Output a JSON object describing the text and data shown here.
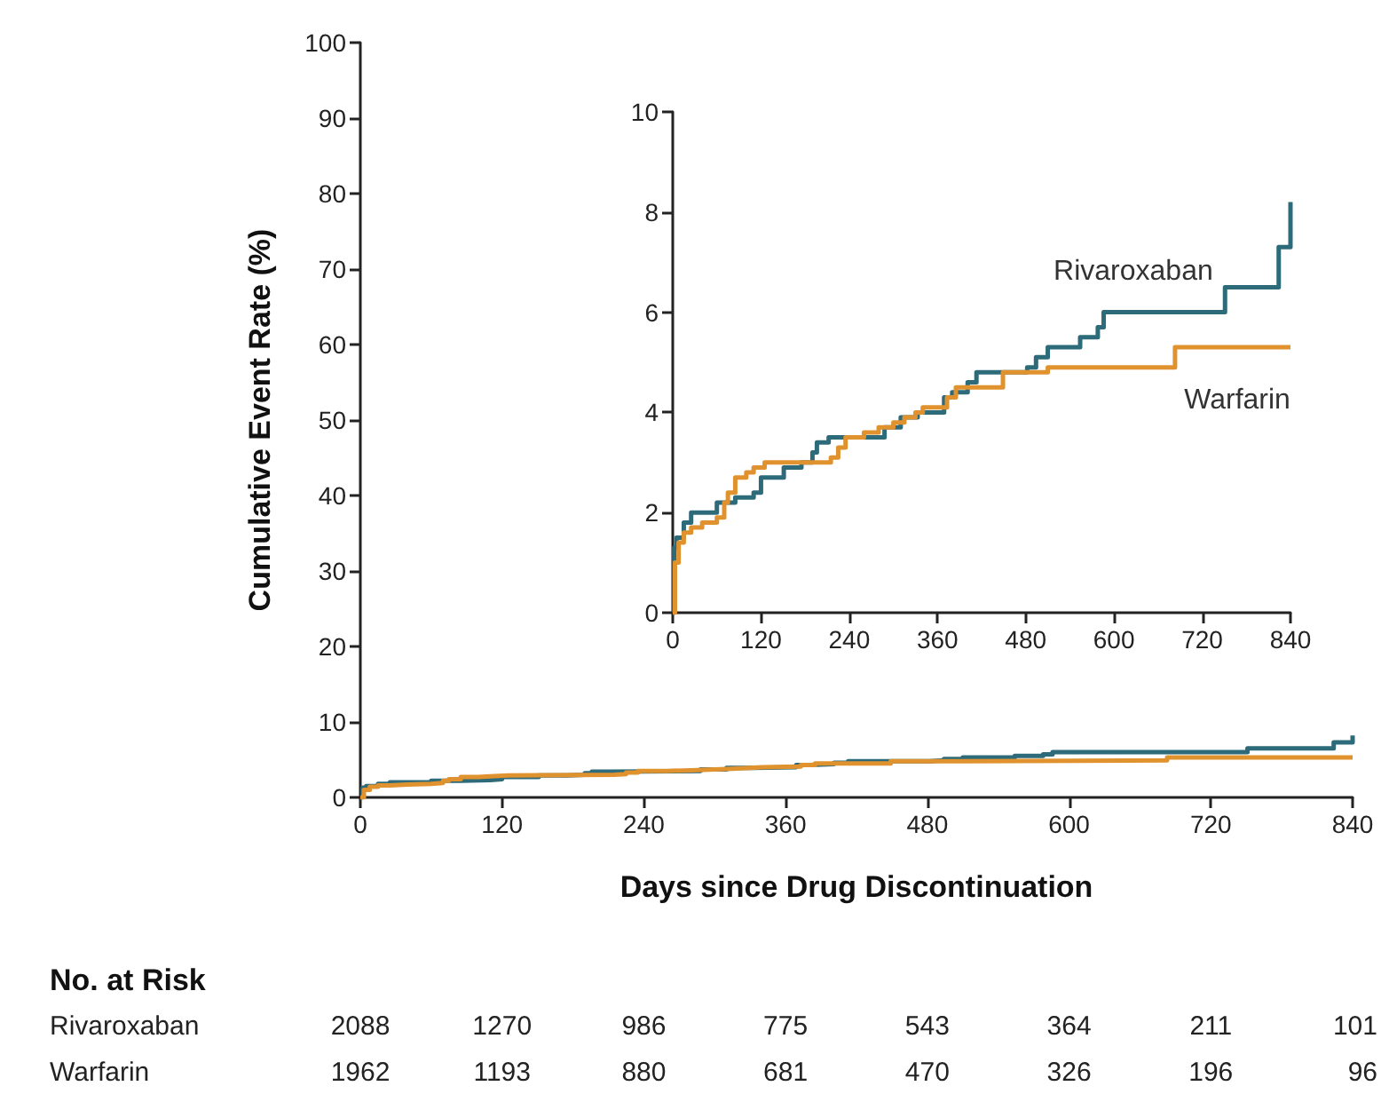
{
  "chart_data": [
    {
      "type": "step",
      "xlabel": "Days since Drug Discontinuation",
      "ylabel": "Cumulative Event Rate (%)",
      "xlim": [
        0,
        840
      ],
      "xticks": [
        0,
        120,
        240,
        360,
        480,
        600,
        720,
        840
      ],
      "ylim": [
        0,
        100
      ],
      "yticks": [
        0,
        10,
        20,
        30,
        40,
        50,
        60,
        70,
        80,
        90,
        100
      ],
      "grid": false,
      "legend": false,
      "marker": "none",
      "line_style": "solid",
      "series": [
        {
          "color": "#2e6b7a",
          "x": [
            0,
            2,
            5,
            15,
            25,
            60,
            85,
            110,
            120,
            151,
            175,
            190,
            196,
            212,
            288,
            310,
            333,
            369,
            380,
            401,
            413,
            482,
            494,
            510,
            554,
            578,
            586,
            751,
            824,
            840
          ],
          "values": [
            0,
            1.3,
            1.5,
            1.8,
            2.0,
            2.2,
            2.3,
            2.4,
            2.7,
            2.9,
            3.0,
            3.2,
            3.4,
            3.5,
            3.7,
            3.9,
            4.0,
            4.3,
            4.4,
            4.6,
            4.8,
            4.9,
            5.1,
            5.3,
            5.5,
            5.7,
            6.0,
            6.5,
            7.3,
            8.2
          ]
        },
        {
          "color": "#e0922f",
          "x": [
            0,
            3,
            8,
            15,
            25,
            40,
            60,
            70,
            75,
            85,
            100,
            110,
            125,
            215,
            225,
            235,
            260,
            280,
            300,
            315,
            330,
            340,
            373,
            385,
            449,
            510,
            683,
            840
          ],
          "values": [
            0,
            1.0,
            1.4,
            1.6,
            1.7,
            1.8,
            1.9,
            2.2,
            2.4,
            2.7,
            2.8,
            2.9,
            3.0,
            3.1,
            3.3,
            3.5,
            3.6,
            3.7,
            3.8,
            3.9,
            4.0,
            4.1,
            4.3,
            4.5,
            4.8,
            4.9,
            5.3,
            5.3
          ]
        }
      ],
      "annotations": [
        "No. at Risk",
        "Rivaroxaban",
        "2088",
        "1270",
        "986",
        "775",
        "543",
        "364",
        "211",
        "101",
        "Warfarin",
        "1962",
        "1193",
        "880",
        "681",
        "470",
        "326",
        "196",
        "96"
      ]
    },
    {
      "type": "step",
      "xlim": [
        0,
        840
      ],
      "xticks": [
        0,
        120,
        240,
        360,
        480,
        600,
        720,
        840
      ],
      "ylim": [
        0,
        10
      ],
      "yticks": [
        0,
        2,
        4,
        6,
        8,
        10
      ],
      "grid": false,
      "legend": false,
      "marker": "none",
      "line_style": "solid",
      "series": [
        {
          "name": "Rivaroxaban",
          "color": "#2e6b7a",
          "x": [
            0,
            2,
            5,
            15,
            25,
            60,
            85,
            110,
            120,
            151,
            175,
            190,
            196,
            212,
            288,
            310,
            333,
            369,
            380,
            401,
            413,
            482,
            494,
            510,
            554,
            578,
            586,
            751,
            824,
            840
          ],
          "values": [
            0,
            1.3,
            1.5,
            1.8,
            2.0,
            2.2,
            2.3,
            2.4,
            2.7,
            2.9,
            3.0,
            3.2,
            3.4,
            3.5,
            3.7,
            3.9,
            4.0,
            4.3,
            4.4,
            4.6,
            4.8,
            4.9,
            5.1,
            5.3,
            5.5,
            5.7,
            6.0,
            6.5,
            7.3,
            8.2
          ]
        },
        {
          "name": "Warfarin",
          "color": "#e0922f",
          "x": [
            0,
            3,
            8,
            15,
            25,
            40,
            60,
            70,
            75,
            85,
            100,
            110,
            125,
            215,
            225,
            235,
            260,
            280,
            300,
            315,
            330,
            340,
            373,
            385,
            449,
            510,
            683,
            840
          ],
          "values": [
            0,
            1.0,
            1.4,
            1.6,
            1.7,
            1.8,
            1.9,
            2.2,
            2.4,
            2.7,
            2.8,
            2.9,
            3.0,
            3.1,
            3.3,
            3.5,
            3.6,
            3.7,
            3.8,
            3.9,
            4.0,
            4.1,
            4.3,
            4.5,
            4.8,
            4.9,
            5.3,
            5.3
          ]
        }
      ]
    }
  ]
}
